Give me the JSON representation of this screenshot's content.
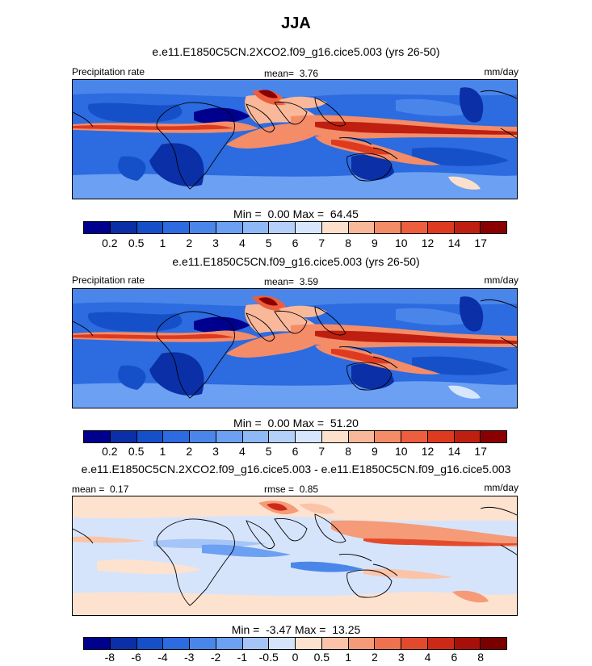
{
  "page": {
    "title": "JJA"
  },
  "panels": [
    {
      "subtitle": "e.e11.E1850C5CN.2XCO2.f09_g16.cice5.003 (yrs 26-50)",
      "left_label": "Precipitation rate",
      "center_label": "mean=",
      "center_value": "3.76",
      "right_label": "mm/day",
      "min_label": "Min =",
      "min_value": "0.00",
      "max_label": "Max =",
      "max_value": "64.45",
      "colorbar_ticks": [
        "0.2",
        "0.5",
        "1",
        "2",
        "3",
        "4",
        "5",
        "6",
        "7",
        "8",
        "9",
        "10",
        "12",
        "14",
        "17"
      ],
      "colorbar_colors": [
        "#00008f",
        "#0a2fa6",
        "#1650c8",
        "#2c6be0",
        "#4a86ea",
        "#6ca0f2",
        "#8fb8f6",
        "#b4d0fa",
        "#d8e6fd",
        "#fde0cc",
        "#f9b89a",
        "#f48c68",
        "#ec5e3e",
        "#dd3a20",
        "#bf1f10",
        "#8a0000"
      ]
    },
    {
      "subtitle": "e.e11.E1850C5CN.f09_g16.cice5.003 (yrs 26-50)",
      "left_label": "Precipitation rate",
      "center_label": "mean=",
      "center_value": "3.59",
      "right_label": "mm/day",
      "min_label": "Min =",
      "min_value": "0.00",
      "max_label": "Max =",
      "max_value": "51.20",
      "colorbar_ticks": [
        "0.2",
        "0.5",
        "1",
        "2",
        "3",
        "4",
        "5",
        "6",
        "7",
        "8",
        "9",
        "10",
        "12",
        "14",
        "17"
      ],
      "colorbar_colors": [
        "#00008f",
        "#0a2fa6",
        "#1650c8",
        "#2c6be0",
        "#4a86ea",
        "#6ca0f2",
        "#8fb8f6",
        "#b4d0fa",
        "#d8e6fd",
        "#fde0cc",
        "#f9b89a",
        "#f48c68",
        "#ec5e3e",
        "#dd3a20",
        "#bf1f10",
        "#8a0000"
      ]
    },
    {
      "subtitle": "e.e11.E1850C5CN.2XCO2.f09_g16.cice5.003 - e.e11.E1850C5CN.f09_g16.cice5.003",
      "left_label": "mean =",
      "left_value": "0.17",
      "center_label": "rmse =",
      "center_value": "0.85",
      "right_label": "mm/day",
      "min_label": "Min =",
      "min_value": "-3.47",
      "max_label": "Max =",
      "max_value": "13.25",
      "colorbar_ticks": [
        "-8",
        "-6",
        "-4",
        "-3",
        "-2",
        "-1",
        "-0.5",
        "0",
        "0.5",
        "1",
        "2",
        "3",
        "4",
        "6",
        "8"
      ],
      "colorbar_colors": [
        "#00008f",
        "#0a2fa6",
        "#1650c8",
        "#2c6be0",
        "#4a86ea",
        "#6ca0f2",
        "#a6c5f7",
        "#d6e4fb",
        "#fde2d0",
        "#fbc4a8",
        "#f59b78",
        "#ee7250",
        "#e34a2c",
        "#cc2a16",
        "#a80f08",
        "#7a0000"
      ]
    }
  ],
  "chart_data": [
    {
      "type": "heatmap",
      "title": "JJA",
      "subtitle": "e.e11.E1850C5CN.2XCO2.f09_g16.cice5.003 (yrs 26-50)",
      "variable": "Precipitation rate",
      "units": "mm/day",
      "mean": 3.76,
      "min": 0.0,
      "max": 64.45,
      "levels": [
        0.2,
        0.5,
        1,
        2,
        3,
        4,
        5,
        6,
        7,
        8,
        9,
        10,
        12,
        14,
        17
      ]
    },
    {
      "type": "heatmap",
      "subtitle": "e.e11.E1850C5CN.f09_g16.cice5.003 (yrs 26-50)",
      "variable": "Precipitation rate",
      "units": "mm/day",
      "mean": 3.59,
      "min": 0.0,
      "max": 51.2,
      "levels": [
        0.2,
        0.5,
        1,
        2,
        3,
        4,
        5,
        6,
        7,
        8,
        9,
        10,
        12,
        14,
        17
      ]
    },
    {
      "type": "heatmap",
      "subtitle": "e.e11.E1850C5CN.2XCO2.f09_g16.cice5.003 - e.e11.E1850C5CN.f09_g16.cice5.003",
      "units": "mm/day",
      "mean": 0.17,
      "rmse": 0.85,
      "min": -3.47,
      "max": 13.25,
      "levels": [
        -8,
        -6,
        -4,
        -3,
        -2,
        -1,
        -0.5,
        0,
        0.5,
        1,
        2,
        3,
        4,
        6,
        8
      ]
    }
  ]
}
